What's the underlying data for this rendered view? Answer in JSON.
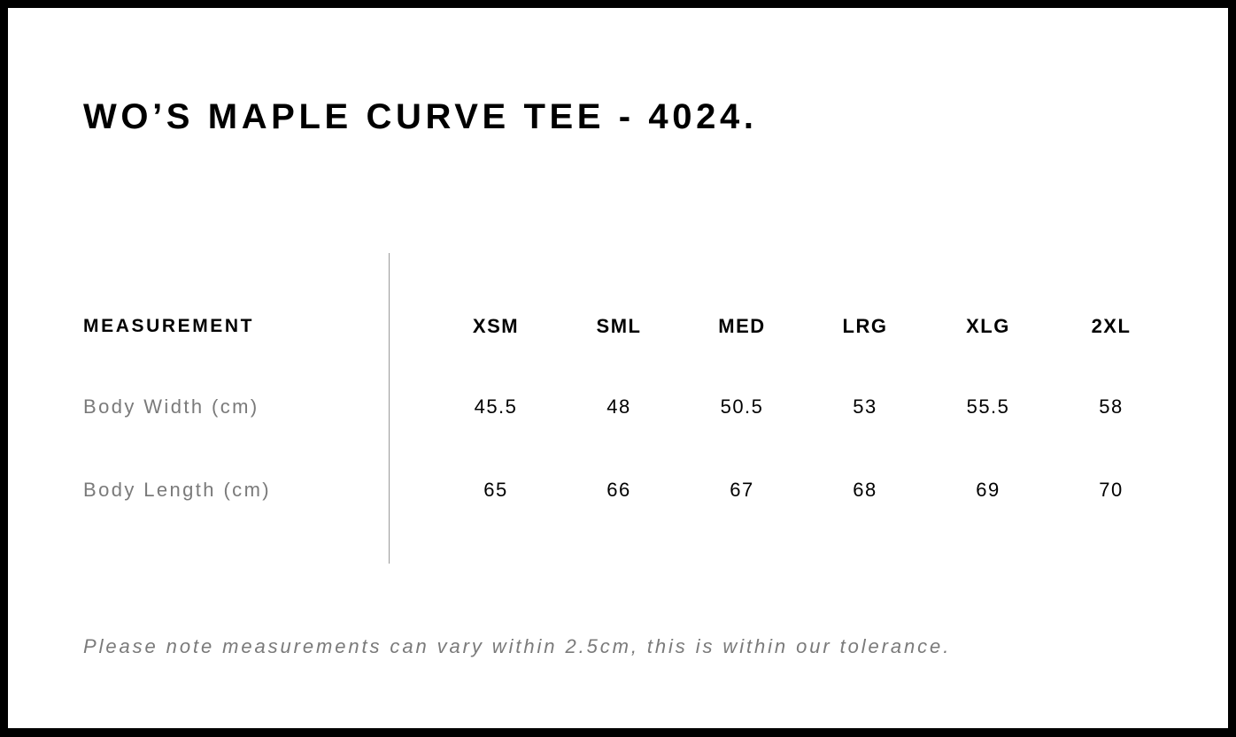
{
  "title": "WO’S MAPLE CURVE TEE - 4024.",
  "table": {
    "header_label": "MEASUREMENT",
    "sizes": [
      "XSM",
      "SML",
      "MED",
      "LRG",
      "XLG",
      "2XL"
    ],
    "rows": [
      {
        "label": "Body Width (cm)",
        "values": [
          "45.5",
          "48",
          "50.5",
          "53",
          "55.5",
          "58"
        ]
      },
      {
        "label": "Body Length (cm)",
        "values": [
          "65",
          "66",
          "67",
          "68",
          "69",
          "70"
        ]
      }
    ]
  },
  "note": "Please note measurements can vary within 2.5cm, this is within our tolerance."
}
